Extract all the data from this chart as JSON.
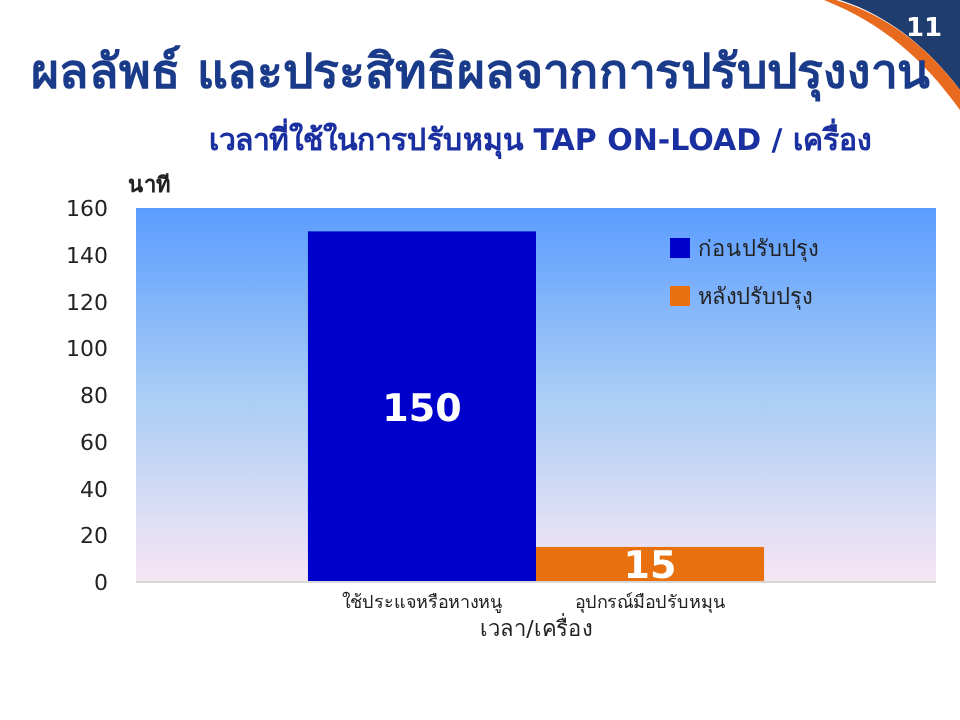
{
  "chart_data": {
    "type": "bar",
    "title": "ผลลัพธ์ และประสิทธิผลจากการปรับปรุงงาน",
    "subtitle": "เวลาที่ใช้ในการปรับหมุน TAP ON-LOAD  / เครื่อง",
    "ylabel": "นาที",
    "xlabel": "เวลา/เครื่อง",
    "annotations": [
      "11"
    ],
    "categories": [
      "ใช้ประแจหรือหางหนู",
      "อุปกรณ์มือปรับหมุน"
    ],
    "series": [
      {
        "name": "ก่อนปรับปรุง",
        "color": "#0000cc",
        "values": [
          150,
          null
        ]
      },
      {
        "name": "หลังปรับปรุง",
        "color": "#e8700f",
        "values": [
          null,
          15
        ]
      }
    ],
    "ylim": [
      0,
      160
    ],
    "yticks": [
      0,
      20,
      40,
      60,
      80,
      100,
      120,
      140,
      160
    ],
    "data_labels": true,
    "legend": "top right",
    "grid": false
  }
}
